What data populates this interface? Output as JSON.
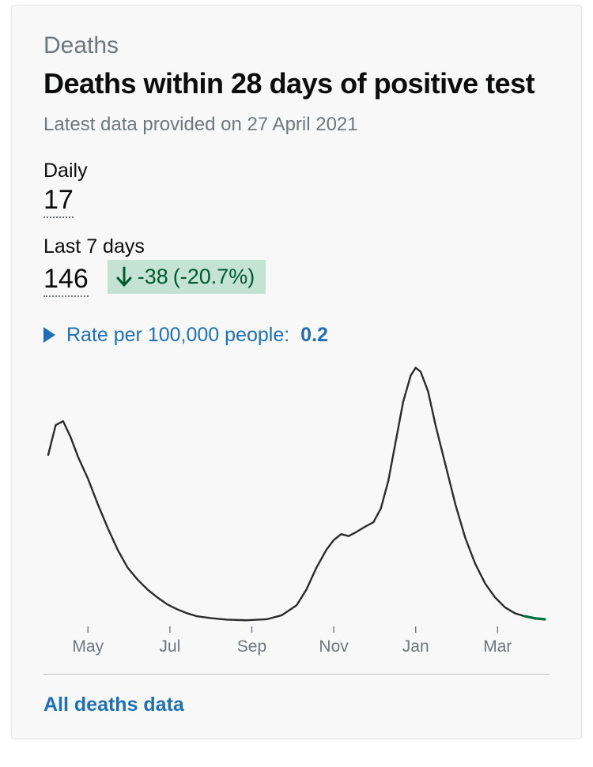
{
  "card": {
    "category": "Deaths",
    "title": "Deaths within 28 days of positive test",
    "latest": "Latest data provided on 27 April 2021",
    "daily": {
      "label": "Daily",
      "value": "17"
    },
    "last7": {
      "label": "Last 7 days",
      "value": "146"
    },
    "change": {
      "number": "-38",
      "percent": "(-20.7%)",
      "direction": "down",
      "bg_color": "#c4e3d5",
      "fg_color": "#005a30"
    },
    "rate": {
      "label": "Rate per 100,000 people:",
      "value": "0.2",
      "color": "#1d70b8"
    },
    "footer_link": "All deaths data"
  },
  "chart": {
    "type": "line",
    "line_color": "#2b2b2b",
    "line_width": 2.4,
    "recent_marker_color": "#00703c",
    "background_color": "#f8f8f8",
    "axis_tick_color": "#6f777b",
    "axis_label_color": "#6f777b",
    "axis_label_fontsize": 21,
    "x_labels": [
      "May",
      "Jul",
      "Sep",
      "Nov",
      "Jan",
      "Mar"
    ],
    "x_tick_positions": [
      0.08,
      0.245,
      0.41,
      0.575,
      0.74,
      0.905
    ],
    "y_range": [
      0,
      1300
    ],
    "series": [
      {
        "x": 0.0,
        "y": 850
      },
      {
        "x": 0.015,
        "y": 1000
      },
      {
        "x": 0.03,
        "y": 1020
      },
      {
        "x": 0.045,
        "y": 940
      },
      {
        "x": 0.06,
        "y": 840
      },
      {
        "x": 0.08,
        "y": 730
      },
      {
        "x": 0.1,
        "y": 600
      },
      {
        "x": 0.12,
        "y": 480
      },
      {
        "x": 0.14,
        "y": 370
      },
      {
        "x": 0.16,
        "y": 280
      },
      {
        "x": 0.18,
        "y": 220
      },
      {
        "x": 0.2,
        "y": 170
      },
      {
        "x": 0.22,
        "y": 130
      },
      {
        "x": 0.24,
        "y": 95
      },
      {
        "x": 0.26,
        "y": 70
      },
      {
        "x": 0.28,
        "y": 50
      },
      {
        "x": 0.3,
        "y": 35
      },
      {
        "x": 0.33,
        "y": 25
      },
      {
        "x": 0.36,
        "y": 18
      },
      {
        "x": 0.4,
        "y": 15
      },
      {
        "x": 0.44,
        "y": 20
      },
      {
        "x": 0.47,
        "y": 40
      },
      {
        "x": 0.5,
        "y": 90
      },
      {
        "x": 0.52,
        "y": 170
      },
      {
        "x": 0.54,
        "y": 280
      },
      {
        "x": 0.56,
        "y": 370
      },
      {
        "x": 0.575,
        "y": 420
      },
      {
        "x": 0.59,
        "y": 450
      },
      {
        "x": 0.605,
        "y": 440
      },
      {
        "x": 0.62,
        "y": 460
      },
      {
        "x": 0.64,
        "y": 490
      },
      {
        "x": 0.655,
        "y": 510
      },
      {
        "x": 0.67,
        "y": 580
      },
      {
        "x": 0.685,
        "y": 720
      },
      {
        "x": 0.7,
        "y": 920
      },
      {
        "x": 0.715,
        "y": 1120
      },
      {
        "x": 0.73,
        "y": 1250
      },
      {
        "x": 0.74,
        "y": 1290
      },
      {
        "x": 0.75,
        "y": 1270
      },
      {
        "x": 0.765,
        "y": 1170
      },
      {
        "x": 0.78,
        "y": 1000
      },
      {
        "x": 0.8,
        "y": 800
      },
      {
        "x": 0.82,
        "y": 600
      },
      {
        "x": 0.84,
        "y": 430
      },
      {
        "x": 0.86,
        "y": 300
      },
      {
        "x": 0.88,
        "y": 200
      },
      {
        "x": 0.9,
        "y": 130
      },
      {
        "x": 0.92,
        "y": 80
      },
      {
        "x": 0.94,
        "y": 50
      },
      {
        "x": 0.96,
        "y": 35
      },
      {
        "x": 0.98,
        "y": 25
      },
      {
        "x": 1.0,
        "y": 20
      }
    ]
  },
  "colors": {
    "page_bg": "#ffffff",
    "card_bg": "#f8f8f8",
    "card_border": "#e5e5e5",
    "text_primary": "#0b0c0c",
    "text_secondary": "#6f777b",
    "link": "#1d70b8",
    "divider": "#bfc1c3"
  }
}
